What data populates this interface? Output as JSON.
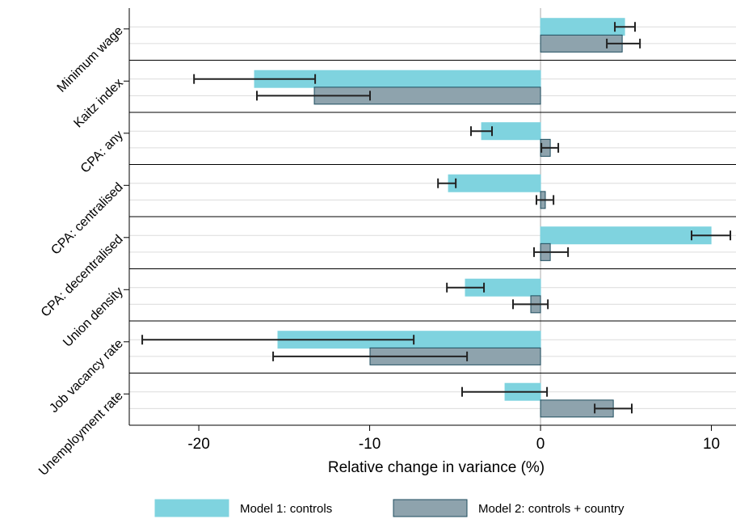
{
  "chart_data": {
    "type": "bar",
    "orientation": "horizontal",
    "x_label": "Relative change in variance (%)",
    "categories": [
      "Minimum wage",
      "Kaitz index",
      "CPA: any",
      "CPA: centralised",
      "CPA: decentralised",
      "Union density",
      "Job vacancy rate",
      "Unemployment rate"
    ],
    "series": [
      {
        "name": "Model 1: controls",
        "color": "#7fd3df",
        "edge": "#7fd3df",
        "values": [
          4.92,
          -16.74,
          -3.45,
          -5.39,
          9.98,
          -4.4,
          -15.37,
          -2.08
        ],
        "ci_low": [
          4.35,
          -20.28,
          -4.07,
          -6.0,
          8.84,
          -5.48,
          -23.31,
          -4.59
        ],
        "ci_high": [
          5.53,
          -13.19,
          -2.84,
          -4.96,
          11.11,
          -3.31,
          -7.42,
          0.38
        ]
      },
      {
        "name": "Model 2: controls + country",
        "color": "#8ea3ad",
        "edge": "#1f4e5f",
        "values": [
          4.78,
          -13.24,
          0.57,
          0.28,
          0.57,
          -0.57,
          -9.98,
          4.26
        ],
        "ci_low": [
          3.88,
          -16.6,
          0.05,
          -0.24,
          -0.38,
          -1.61,
          -15.65,
          3.17
        ],
        "ci_high": [
          5.82,
          -9.98,
          1.04,
          0.76,
          1.61,
          0.43,
          -4.3,
          5.34
        ]
      }
    ],
    "xlim": [
      -24.07,
      11.44
    ],
    "xticks": [
      -20,
      -10,
      0,
      10
    ],
    "grid": true
  }
}
